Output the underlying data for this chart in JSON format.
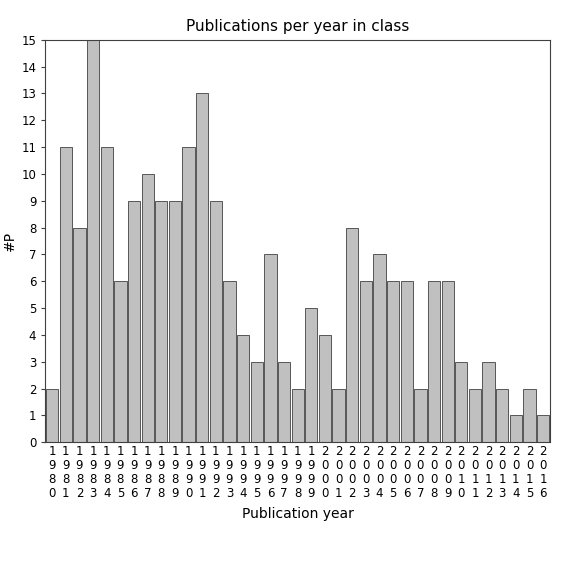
{
  "title": "Publications per year in class",
  "xlabel": "Publication year",
  "ylabel": "#P",
  "years": [
    "1980",
    "1981",
    "1982",
    "1983",
    "1984",
    "1985",
    "1986",
    "1987",
    "1988",
    "1989",
    "1990",
    "1991",
    "1992",
    "1993",
    "1994",
    "1995",
    "1996",
    "1997",
    "1998",
    "1999",
    "2000",
    "2001",
    "2002",
    "2003",
    "2004",
    "2005",
    "2006",
    "2007",
    "2008",
    "2009",
    "2010",
    "2011",
    "2012",
    "2013",
    "2014",
    "2015",
    "2016"
  ],
  "values": [
    2,
    11,
    8,
    15,
    11,
    6,
    9,
    10,
    9,
    9,
    11,
    13,
    9,
    6,
    4,
    3,
    7,
    3,
    2,
    5,
    4,
    2,
    8,
    6,
    7,
    6,
    6,
    2,
    6,
    6,
    3,
    2,
    3,
    2,
    1,
    2,
    1
  ],
  "bar_color": "#c0c0c0",
  "bar_edge_color": "#404040",
  "ylim": [
    0,
    15
  ],
  "yticks": [
    0,
    1,
    2,
    3,
    4,
    5,
    6,
    7,
    8,
    9,
    10,
    11,
    12,
    13,
    14,
    15
  ],
  "bg_color": "#ffffff",
  "title_fontsize": 11,
  "axis_label_fontsize": 10,
  "tick_fontsize": 8.5
}
